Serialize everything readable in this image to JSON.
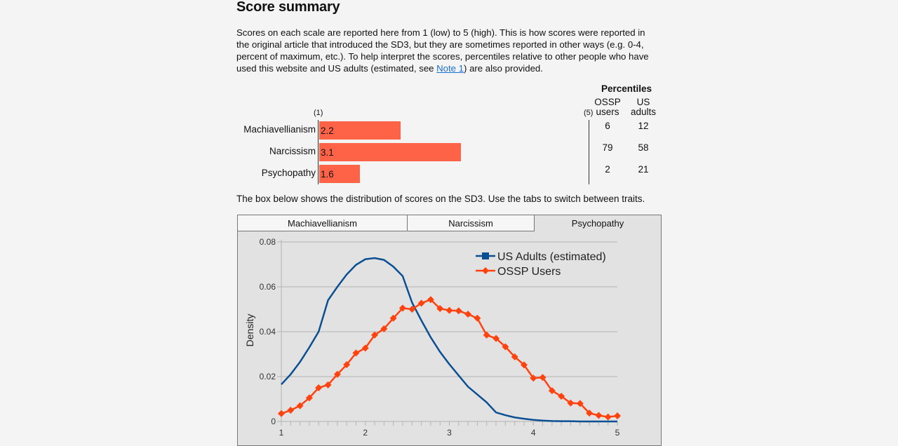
{
  "title": "Score summary",
  "intro": {
    "before_link": "Scores on each scale are reported here from 1 (low) to 5 (high). This is how scores were reported in the original article that introduced the SD3, but they are sometimes reported in other ways (e.g. 0-4, percent of maximum, etc.). To help interpret the scores, percentiles relative to other people who have used this website and US adults (estimated, see ",
    "link": "Note 1",
    "after_link": ") are also provided."
  },
  "scores": {
    "scale_min_label": "(1)",
    "scale_max_label": "(5)",
    "scale_min": 1,
    "scale_max": 5,
    "bar_color": "#ff6347",
    "percentiles_header": "Percentiles",
    "col_ossp": [
      "OSSP",
      "users"
    ],
    "col_us": [
      "US",
      "adults"
    ],
    "rows": [
      {
        "trait": "Machiavellianism",
        "score": "2.2",
        "ossp_pct": "6",
        "us_pct": "12"
      },
      {
        "trait": "Narcissism",
        "score": "3.1",
        "ossp_pct": "79",
        "us_pct": "58"
      },
      {
        "trait": "Psychopathy",
        "score": "1.6",
        "ossp_pct": "2",
        "us_pct": "21"
      }
    ]
  },
  "distribution_text": "The box below shows the distribution of scores on the SD3. Use the tabs to switch between traits.",
  "tabs": [
    {
      "label": "Machiavellianism",
      "active": false
    },
    {
      "label": "Narcissism",
      "active": false
    },
    {
      "label": "Psychopathy",
      "active": true
    }
  ],
  "chart_data": {
    "type": "line",
    "title": "",
    "xlabel": "",
    "ylabel": "Density",
    "xlim": [
      1,
      5
    ],
    "ylim": [
      0,
      0.08
    ],
    "xticks": [
      "1",
      "2",
      "3",
      "4",
      "5"
    ],
    "yticks": [
      "0",
      "0.02",
      "0.04",
      "0.06",
      "0.08"
    ],
    "grid": true,
    "legend": "top-right",
    "x": [
      1,
      1.111,
      1.222,
      1.333,
      1.444,
      1.556,
      1.667,
      1.778,
      1.889,
      2,
      2.111,
      2.222,
      2.333,
      2.444,
      2.556,
      2.667,
      2.778,
      2.889,
      3,
      3.111,
      3.222,
      3.333,
      3.444,
      3.556,
      3.667,
      3.778,
      3.889,
      4,
      4.111,
      4.222,
      4.333,
      4.444,
      4.556,
      4.667,
      4.778,
      4.889,
      5
    ],
    "series": [
      {
        "name": "US Adults (estimated)",
        "color": "#0b4f93",
        "marker": "square",
        "values": [
          0.0165,
          0.021,
          0.0265,
          0.033,
          0.04,
          0.054,
          0.06,
          0.0655,
          0.0698,
          0.0723,
          0.0728,
          0.072,
          0.069,
          0.0648,
          0.053,
          0.045,
          0.0375,
          0.031,
          0.0255,
          0.0205,
          0.0155,
          0.012,
          0.0085,
          0.004,
          0.0028,
          0.0018,
          0.0012,
          0.0007,
          0.0004,
          0.0002,
          0.0001,
          0.0001,
          0,
          0,
          0,
          0,
          0
        ]
      },
      {
        "name": "OSSP Users",
        "color": "#ff420e",
        "marker": "diamond",
        "values": [
          0.0035,
          0.005,
          0.007,
          0.0105,
          0.015,
          0.0163,
          0.021,
          0.0253,
          0.0305,
          0.0327,
          0.0385,
          0.0413,
          0.046,
          0.0505,
          0.05,
          0.0527,
          0.0543,
          0.0503,
          0.0495,
          0.0493,
          0.0478,
          0.046,
          0.0385,
          0.037,
          0.0333,
          0.0288,
          0.0252,
          0.0193,
          0.0196,
          0.0137,
          0.0112,
          0.0082,
          0.008,
          0.0037,
          0.0027,
          0.002,
          0.0025
        ]
      }
    ]
  }
}
